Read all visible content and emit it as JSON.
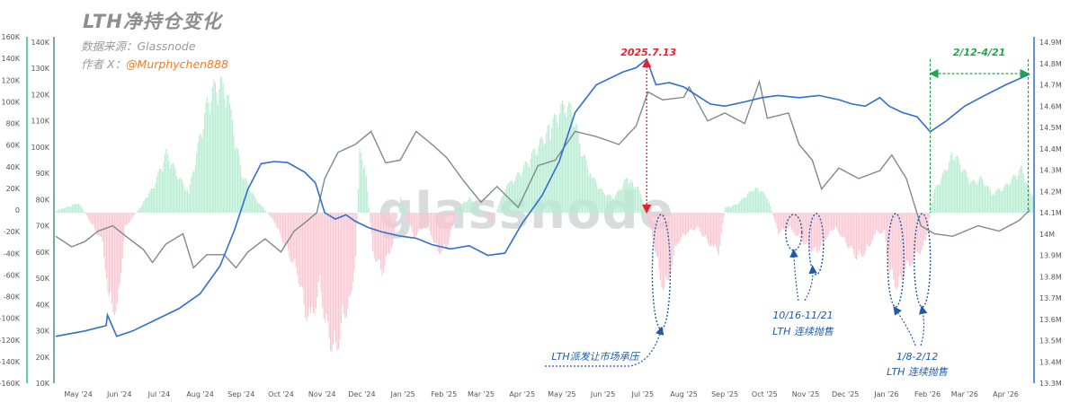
{
  "header": {
    "title": "LTH净持仓变化",
    "source": "数据来源：Glassnode",
    "author_prefix": "作者 X：",
    "author_handle": "@Murphychen888"
  },
  "watermark": "glassnode",
  "colors": {
    "positive_bar": "#b6ecd2",
    "negative_bar": "#f9c6d1",
    "lth_supply_line": "#2e6fd0",
    "btc_price_line": "#7c8b90",
    "left_axis": "#2ec08a",
    "price_axis": "#4f8a8a",
    "supply_axis": "#2e6fd0",
    "highlight_red": "#e8202a",
    "highlight_green": "#1fa84a",
    "annotation_blue": "#1e5aa8"
  },
  "chart_data": {
    "type": "bar+line",
    "x_axis": {
      "tick_labels": [
        "May '24",
        "Jun '24",
        "Jul '24",
        "Aug '24",
        "Sep '24",
        "Oct '24",
        "Nov '24",
        "Dec '24",
        "Jan '25",
        "Feb '25",
        "Mar '25",
        "Apr '25",
        "May '25",
        "Jun '25",
        "Jul '25",
        "Aug '25",
        "Sep '25",
        "Oct '25",
        "Nov '25",
        "Dec '25",
        "Jan '26",
        "Feb '26",
        "Mar '26",
        "Apr '26"
      ],
      "range": [
        "2024-04-23",
        "2026-04-30"
      ]
    },
    "y_axes": {
      "net_position_change": {
        "side": "left-outer",
        "range": [
          -160000,
          160000
        ],
        "tick_labels": [
          "160K",
          "140K",
          "120K",
          "100K",
          "80K",
          "60K",
          "40K",
          "20K",
          "0",
          "-20K",
          "-40K",
          "-60K",
          "-80K",
          "-100K",
          "-120K",
          "-140K",
          "-160K"
        ]
      },
      "btc_price": {
        "side": "left-inner",
        "range": [
          10000,
          140000
        ],
        "tick_labels": [
          "140K",
          "130K",
          "120K",
          "110K",
          "100K",
          "90K",
          "80K",
          "70K",
          "60K",
          "50K",
          "40K",
          "30K",
          "20K",
          "10K"
        ]
      },
      "lth_supply": {
        "side": "right",
        "range": [
          13300000,
          14900000
        ],
        "tick_labels": [
          "14.9M",
          "14.8M",
          "14.7M",
          "14.6M",
          "14.5M",
          "14.4M",
          "14.3M",
          "14.2M",
          "14.1M",
          "14M",
          "13.9M",
          "13.8M",
          "13.7M",
          "13.6M",
          "13.5M",
          "13.4M",
          "13.3M"
        ]
      }
    },
    "series": [
      {
        "kind": "bars",
        "axis": "net_position_change",
        "unit": "BTC",
        "points": [
          [
            "2024-04-23",
            2000
          ],
          [
            "2024-05-10",
            10000
          ],
          [
            "2024-05-28",
            -30000
          ],
          [
            "2024-06-02",
            -90000
          ],
          [
            "2024-06-08",
            -100000
          ],
          [
            "2024-06-14",
            -15000
          ],
          [
            "2024-06-25",
            5000
          ],
          [
            "2024-07-05",
            25000
          ],
          [
            "2024-07-15",
            60000
          ],
          [
            "2024-07-25",
            35000
          ],
          [
            "2024-08-01",
            20000
          ],
          [
            "2024-08-10",
            80000
          ],
          [
            "2024-08-15",
            110000
          ],
          [
            "2024-08-20",
            125000
          ],
          [
            "2024-08-25",
            130000
          ],
          [
            "2024-08-30",
            120000
          ],
          [
            "2024-09-05",
            75000
          ],
          [
            "2024-09-10",
            40000
          ],
          [
            "2024-09-20",
            15000
          ],
          [
            "2024-09-28",
            2000
          ],
          [
            "2024-10-05",
            -10000
          ],
          [
            "2024-10-15",
            -40000
          ],
          [
            "2024-10-22",
            -60000
          ],
          [
            "2024-10-28",
            -100000
          ],
          [
            "2024-11-02",
            -110000
          ],
          [
            "2024-11-08",
            -70000
          ],
          [
            "2024-11-12",
            -110000
          ],
          [
            "2024-11-16",
            -130000
          ],
          [
            "2024-11-20",
            -140000
          ],
          [
            "2024-11-25",
            -110000
          ],
          [
            "2024-11-30",
            -90000
          ],
          [
            "2024-12-05",
            -50000
          ],
          [
            "2024-12-08",
            60000
          ],
          [
            "2024-12-12",
            50000
          ],
          [
            "2024-12-18",
            -40000
          ],
          [
            "2024-12-25",
            -60000
          ],
          [
            "2025-01-02",
            -30000
          ],
          [
            "2025-01-08",
            15000
          ],
          [
            "2025-01-18",
            -25000
          ],
          [
            "2025-01-28",
            -10000
          ],
          [
            "2025-02-05",
            -40000
          ],
          [
            "2025-02-12",
            -35000
          ],
          [
            "2025-02-20",
            5000
          ],
          [
            "2025-03-01",
            15000
          ],
          [
            "2025-03-10",
            2000
          ],
          [
            "2025-03-18",
            -10000
          ],
          [
            "2025-03-28",
            25000
          ],
          [
            "2025-04-08",
            40000
          ],
          [
            "2025-04-18",
            60000
          ],
          [
            "2025-04-28",
            80000
          ],
          [
            "2025-05-05",
            95000
          ],
          [
            "2025-05-12",
            110000
          ],
          [
            "2025-05-18",
            100000
          ],
          [
            "2025-05-25",
            60000
          ],
          [
            "2025-06-02",
            35000
          ],
          [
            "2025-06-10",
            20000
          ],
          [
            "2025-06-18",
            15000
          ],
          [
            "2025-06-28",
            35000
          ],
          [
            "2025-07-06",
            25000
          ],
          [
            "2025-07-12",
            5000
          ],
          [
            "2025-07-18",
            -30000
          ],
          [
            "2025-07-22",
            -60000
          ],
          [
            "2025-07-26",
            -80000
          ],
          [
            "2025-07-30",
            -60000
          ],
          [
            "2025-08-05",
            -30000
          ],
          [
            "2025-08-12",
            -20000
          ],
          [
            "2025-08-20",
            -15000
          ],
          [
            "2025-08-28",
            -30000
          ],
          [
            "2025-09-05",
            -40000
          ],
          [
            "2025-09-10",
            5000
          ],
          [
            "2025-09-18",
            8000
          ],
          [
            "2025-09-28",
            20000
          ],
          [
            "2025-10-05",
            25000
          ],
          [
            "2025-10-12",
            15000
          ],
          [
            "2025-10-20",
            -20000
          ],
          [
            "2025-10-28",
            -15000
          ],
          [
            "2025-11-05",
            -25000
          ],
          [
            "2025-11-12",
            -35000
          ],
          [
            "2025-11-18",
            -40000
          ],
          [
            "2025-11-25",
            -25000
          ],
          [
            "2025-12-02",
            -15000
          ],
          [
            "2025-12-10",
            -30000
          ],
          [
            "2025-12-18",
            -45000
          ],
          [
            "2025-12-25",
            -40000
          ],
          [
            "2026-01-02",
            -20000
          ],
          [
            "2026-01-08",
            -20000
          ],
          [
            "2026-01-12",
            -60000
          ],
          [
            "2026-01-18",
            -75000
          ],
          [
            "2026-01-25",
            -55000
          ],
          [
            "2026-02-01",
            -45000
          ],
          [
            "2026-02-08",
            -30000
          ],
          [
            "2026-02-14",
            20000
          ],
          [
            "2026-02-22",
            40000
          ],
          [
            "2026-03-01",
            60000
          ],
          [
            "2026-03-08",
            45000
          ],
          [
            "2026-03-15",
            30000
          ],
          [
            "2026-03-22",
            35000
          ],
          [
            "2026-03-30",
            20000
          ],
          [
            "2026-04-08",
            25000
          ],
          [
            "2026-04-15",
            35000
          ],
          [
            "2026-04-22",
            45000
          ],
          [
            "2026-04-28",
            20000
          ]
        ]
      },
      {
        "kind": "line",
        "axis": "lth_supply",
        "unit": "BTC",
        "points": [
          [
            "2024-04-23",
            13520000
          ],
          [
            "2024-05-15",
            13545000
          ],
          [
            "2024-05-31",
            13570000
          ],
          [
            "2024-06-01",
            13620000
          ],
          [
            "2024-06-08",
            13520000
          ],
          [
            "2024-06-20",
            13545000
          ],
          [
            "2024-07-05",
            13590000
          ],
          [
            "2024-07-25",
            13650000
          ],
          [
            "2024-08-10",
            13720000
          ],
          [
            "2024-08-25",
            13850000
          ],
          [
            "2024-09-05",
            14020000
          ],
          [
            "2024-09-15",
            14210000
          ],
          [
            "2024-09-25",
            14330000
          ],
          [
            "2024-10-05",
            14340000
          ],
          [
            "2024-10-15",
            14335000
          ],
          [
            "2024-10-28",
            14290000
          ],
          [
            "2024-11-05",
            14240000
          ],
          [
            "2024-11-12",
            14100000
          ],
          [
            "2024-11-20",
            14070000
          ],
          [
            "2024-11-28",
            14090000
          ],
          [
            "2024-12-05",
            14060000
          ],
          [
            "2024-12-15",
            14030000
          ],
          [
            "2024-12-25",
            14010000
          ],
          [
            "2025-01-08",
            13990000
          ],
          [
            "2025-01-20",
            13980000
          ],
          [
            "2025-02-01",
            13950000
          ],
          [
            "2025-02-15",
            13930000
          ],
          [
            "2025-03-01",
            13945000
          ],
          [
            "2025-03-15",
            13900000
          ],
          [
            "2025-03-28",
            13910000
          ],
          [
            "2025-04-10",
            14050000
          ],
          [
            "2025-04-25",
            14180000
          ],
          [
            "2025-05-08",
            14340000
          ],
          [
            "2025-05-20",
            14570000
          ],
          [
            "2025-06-05",
            14700000
          ],
          [
            "2025-06-25",
            14760000
          ],
          [
            "2025-07-05",
            14780000
          ],
          [
            "2025-07-13",
            14820000
          ],
          [
            "2025-07-20",
            14700000
          ],
          [
            "2025-07-30",
            14710000
          ],
          [
            "2025-08-10",
            14690000
          ],
          [
            "2025-08-20",
            14650000
          ],
          [
            "2025-08-30",
            14610000
          ],
          [
            "2025-09-10",
            14600000
          ],
          [
            "2025-09-25",
            14620000
          ],
          [
            "2025-10-08",
            14640000
          ],
          [
            "2025-10-20",
            14650000
          ],
          [
            "2025-11-05",
            14640000
          ],
          [
            "2025-11-20",
            14650000
          ],
          [
            "2025-12-05",
            14630000
          ],
          [
            "2025-12-15",
            14610000
          ],
          [
            "2025-12-25",
            14600000
          ],
          [
            "2026-01-05",
            14640000
          ],
          [
            "2026-01-12",
            14600000
          ],
          [
            "2026-01-22",
            14570000
          ],
          [
            "2026-02-02",
            14550000
          ],
          [
            "2026-02-12",
            14480000
          ],
          [
            "2026-02-24",
            14530000
          ],
          [
            "2026-03-10",
            14600000
          ],
          [
            "2026-03-25",
            14650000
          ],
          [
            "2026-04-10",
            14700000
          ],
          [
            "2026-04-28",
            14750000
          ]
        ]
      },
      {
        "kind": "line",
        "axis": "btc_price",
        "unit": "USD",
        "points": [
          [
            "2024-04-23",
            66000
          ],
          [
            "2024-05-05",
            62000
          ],
          [
            "2024-05-15",
            64000
          ],
          [
            "2024-05-25",
            68000
          ],
          [
            "2024-06-05",
            70000
          ],
          [
            "2024-06-15",
            66000
          ],
          [
            "2024-06-28",
            61000
          ],
          [
            "2024-07-05",
            56000
          ],
          [
            "2024-07-15",
            63000
          ],
          [
            "2024-07-28",
            67000
          ],
          [
            "2024-08-05",
            54000
          ],
          [
            "2024-08-15",
            59000
          ],
          [
            "2024-08-28",
            59000
          ],
          [
            "2024-09-06",
            54000
          ],
          [
            "2024-09-15",
            60000
          ],
          [
            "2024-09-28",
            65000
          ],
          [
            "2024-10-10",
            60000
          ],
          [
            "2024-10-20",
            68000
          ],
          [
            "2024-10-30",
            72000
          ],
          [
            "2024-11-06",
            75000
          ],
          [
            "2024-11-12",
            88000
          ],
          [
            "2024-11-22",
            98000
          ],
          [
            "2024-12-05",
            101000
          ],
          [
            "2024-12-17",
            106000
          ],
          [
            "2024-12-28",
            94000
          ],
          [
            "2025-01-08",
            95000
          ],
          [
            "2025-01-20",
            106000
          ],
          [
            "2025-02-01",
            101000
          ],
          [
            "2025-02-12",
            96000
          ],
          [
            "2025-02-25",
            87000
          ],
          [
            "2025-03-10",
            79000
          ],
          [
            "2025-03-22",
            85000
          ],
          [
            "2025-04-07",
            77000
          ],
          [
            "2025-04-22",
            93000
          ],
          [
            "2025-05-05",
            95000
          ],
          [
            "2025-05-20",
            106000
          ],
          [
            "2025-06-05",
            104000
          ],
          [
            "2025-06-22",
            101000
          ],
          [
            "2025-07-05",
            108000
          ],
          [
            "2025-07-14",
            121000
          ],
          [
            "2025-07-25",
            118000
          ],
          [
            "2025-08-10",
            119000
          ],
          [
            "2025-08-14",
            123000
          ],
          [
            "2025-08-28",
            110000
          ],
          [
            "2025-09-10",
            113000
          ],
          [
            "2025-09-25",
            109000
          ],
          [
            "2025-10-06",
            125000
          ],
          [
            "2025-10-12",
            111000
          ],
          [
            "2025-10-28",
            113000
          ],
          [
            "2025-11-05",
            101000
          ],
          [
            "2025-11-15",
            95000
          ],
          [
            "2025-11-22",
            84000
          ],
          [
            "2025-12-05",
            92000
          ],
          [
            "2025-12-20",
            88000
          ],
          [
            "2026-01-05",
            91000
          ],
          [
            "2026-01-14",
            97000
          ],
          [
            "2026-01-25",
            88000
          ],
          [
            "2026-02-05",
            70000
          ],
          [
            "2026-02-15",
            67000
          ],
          [
            "2026-03-01",
            66000
          ],
          [
            "2026-03-20",
            70000
          ],
          [
            "2026-04-05",
            68000
          ],
          [
            "2026-04-20",
            72000
          ],
          [
            "2026-04-28",
            76000
          ]
        ]
      }
    ]
  },
  "annotations": {
    "peak_label": "2025.7.13",
    "range_label_green": "2/12-4/21",
    "note_lth_distribution": "LTH派发让市场承压",
    "note_oct_nov_range": "10/16-11/21",
    "note_oct_nov_text": "LTH 连续抛售",
    "note_jan_feb_range": "1/8-2/12",
    "note_jan_feb_text": "LTH 连续抛售"
  }
}
